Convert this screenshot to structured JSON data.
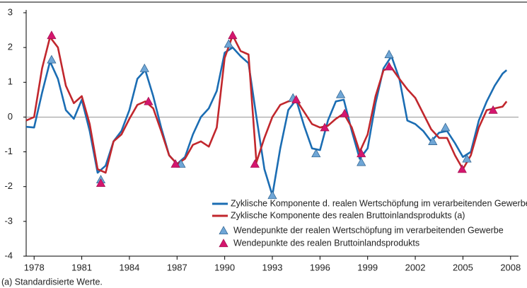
{
  "chart_data": {
    "type": "line",
    "footnote": "(a) Standardisierte Werte.",
    "xlim": [
      1977.5,
      2008.5
    ],
    "xticks": [
      1978,
      1981,
      1984,
      1987,
      1990,
      1993,
      1996,
      1999,
      2002,
      2005,
      2008
    ],
    "ylim": [
      -4,
      3
    ],
    "yticks": [
      3,
      2,
      1,
      0,
      -1,
      -2,
      -3,
      -4
    ],
    "legend": "lower right",
    "series": [
      {
        "name": "Zyklische Komponente d. realen Wertschöpfung im verarbeitenden Gewerbe (a)",
        "color": "#1b6db3",
        "style": "line",
        "x": [
          1977.5,
          1978,
          1978.5,
          1979,
          1979.5,
          1980,
          1980.5,
          1981,
          1981.5,
          1982,
          1982.5,
          1983,
          1983.5,
          1984,
          1984.5,
          1985,
          1985.5,
          1986,
          1986.5,
          1987,
          1987.5,
          1988,
          1988.5,
          1989,
          1989.5,
          1990,
          1990.5,
          1991,
          1991.5,
          1992,
          1992.5,
          1993,
          1993.5,
          1994,
          1994.5,
          1995,
          1995.5,
          1996,
          1996.5,
          1997,
          1997.5,
          1998,
          1998.5,
          1999,
          1999.5,
          2000,
          2000.5,
          2001,
          2001.5,
          2002,
          2002.5,
          2003,
          2003.5,
          2004,
          2004.5,
          2005,
          2005.5,
          2006,
          2006.5,
          2007,
          2007.5,
          2007.75
        ],
        "values": [
          -0.28,
          -0.3,
          0.7,
          1.6,
          1.1,
          0.2,
          -0.05,
          0.5,
          -0.4,
          -1.6,
          -1.4,
          -0.7,
          -0.4,
          0.2,
          1.1,
          1.35,
          0.6,
          -0.3,
          -1.1,
          -1.35,
          -1.15,
          -0.5,
          0.0,
          0.25,
          0.75,
          1.85,
          2.0,
          1.75,
          1.55,
          0.0,
          -1.5,
          -2.25,
          -0.9,
          0.2,
          0.5,
          -0.25,
          -0.9,
          -0.95,
          -0.1,
          0.45,
          0.5,
          -0.4,
          -1.2,
          -0.9,
          0.4,
          1.4,
          1.75,
          1.1,
          -0.1,
          -0.2,
          -0.4,
          -0.7,
          -0.45,
          -0.4,
          -0.75,
          -1.15,
          -1.0,
          -0.1,
          0.45,
          0.9,
          1.25,
          1.35
        ]
      },
      {
        "name": "Zyklische Komponente des realen Bruttoinlandsprodukts (a)",
        "color": "#c1272d",
        "style": "line",
        "x": [
          1977.5,
          1978,
          1978.5,
          1979,
          1979.5,
          1980,
          1980.5,
          1981,
          1981.5,
          1982,
          1982.5,
          1983,
          1983.5,
          1984,
          1984.5,
          1985,
          1985.5,
          1986,
          1986.5,
          1987,
          1987.5,
          1988,
          1988.5,
          1989,
          1989.5,
          1990,
          1990.5,
          1991,
          1991.5,
          1992,
          1992.5,
          1993,
          1993.5,
          1994,
          1994.5,
          1995,
          1995.5,
          1996,
          1996.5,
          1997,
          1997.5,
          1998,
          1998.5,
          1999,
          1999.5,
          2000,
          2000.5,
          2001,
          2001.5,
          2002,
          2002.5,
          2003,
          2003.5,
          2004,
          2004.5,
          2005,
          2005.5,
          2006,
          2006.5,
          2007,
          2007.5,
          2007.75
        ],
        "values": [
          -0.1,
          0.0,
          1.4,
          2.3,
          2.0,
          0.9,
          0.4,
          0.6,
          -0.2,
          -1.5,
          -1.6,
          -0.7,
          -0.5,
          -0.05,
          0.35,
          0.45,
          0.25,
          -0.4,
          -1.1,
          -1.35,
          -1.2,
          -0.8,
          -0.7,
          -0.85,
          -0.3,
          1.7,
          2.35,
          1.9,
          1.8,
          -1.3,
          -0.6,
          0.0,
          0.35,
          0.45,
          0.5,
          0.15,
          -0.2,
          -0.3,
          -0.25,
          -0.05,
          0.1,
          -0.3,
          -1.0,
          -0.5,
          0.6,
          1.35,
          1.42,
          1.1,
          0.8,
          0.55,
          0.1,
          -0.35,
          -0.6,
          -0.6,
          -1.1,
          -1.5,
          -1.1,
          -0.3,
          0.2,
          0.25,
          0.3,
          0.45
        ]
      },
      {
        "name": "Wendepunkte der realen Wertschöpfung im verarbeitenden Gewerbe",
        "color": "#6fa6d6",
        "style": "triangle",
        "x": [
          1979.1,
          1982.2,
          1984.95,
          1987.25,
          1990.25,
          1993.0,
          1994.3,
          1995.75,
          1997.3,
          1998.6,
          2000.35,
          2003.1,
          2003.9,
          2005.25
        ],
        "values": [
          1.65,
          -1.8,
          1.4,
          -1.35,
          2.1,
          -2.25,
          0.55,
          -1.05,
          0.65,
          -1.3,
          1.8,
          -0.7,
          -0.3,
          -1.2
        ]
      },
      {
        "name": "Wendepunkte des realen Bruttoinlandsprodukts",
        "color": "#d4166e",
        "style": "triangle",
        "x": [
          1979.1,
          1982.2,
          1985.2,
          1986.9,
          1990.5,
          1991.9,
          1994.5,
          1996.3,
          1997.55,
          1998.6,
          2000.35,
          2004.95,
          2006.9
        ],
        "values": [
          2.35,
          -1.9,
          0.45,
          -1.35,
          2.35,
          -1.35,
          0.5,
          -0.3,
          0.1,
          -1.05,
          1.45,
          -1.5,
          0.2
        ]
      }
    ]
  }
}
